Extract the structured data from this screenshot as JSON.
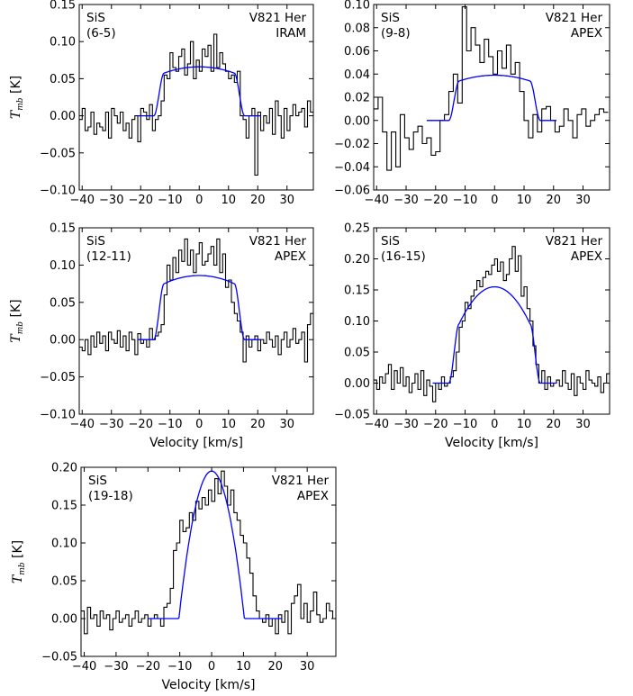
{
  "chart_data": [
    {
      "type": "line",
      "molecule": "SiS",
      "transition": "(6-5)",
      "source": "V821 Her",
      "telescope": "IRAM",
      "xlabel": "",
      "ylabel": "T_mb [K]",
      "xlim": [
        -41,
        39
      ],
      "ylim": [
        -0.1,
        0.15
      ],
      "xticks": [
        -40,
        -30,
        -20,
        -10,
        0,
        10,
        20,
        30
      ],
      "xtick_labels": [
        "−40",
        "−30",
        "−20",
        "−10",
        "0",
        "10",
        "20",
        "30"
      ],
      "yticks": [
        -0.1,
        -0.05,
        0.0,
        0.05,
        0.1,
        0.15
      ],
      "ytick_labels": [
        "−0.10",
        "−0.05",
        "0.00",
        "0.05",
        "0.10",
        "0.15"
      ],
      "grid": false,
      "series": [
        {
          "color": "#000000",
          "style": "steps",
          "x_start": -41,
          "x_step": 1,
          "values": [
            -0.005,
            0.01,
            -0.02,
            -0.015,
            0.005,
            -0.025,
            -0.01,
            -0.015,
            -0.02,
            0.005,
            -0.03,
            0.01,
            0.0,
            -0.01,
            0.005,
            -0.02,
            -0.01,
            -0.03,
            -0.005,
            0.0,
            -0.035,
            0.01,
            0.005,
            -0.005,
            0.015,
            -0.02,
            -0.005,
            0.0,
            0.02,
            0.055,
            0.05,
            0.085,
            0.065,
            0.06,
            0.08,
            0.09,
            0.055,
            0.07,
            0.1,
            0.05,
            0.075,
            0.06,
            0.09,
            0.08,
            0.095,
            0.06,
            0.11,
            0.065,
            0.085,
            0.07,
            0.06,
            0.05,
            0.055,
            0.045,
            0.06,
            0.0,
            -0.005,
            -0.03,
            0.0,
            0.01,
            -0.08,
            0.005,
            -0.02,
            0.0,
            -0.01,
            0.01,
            -0.025,
            0.02,
            0.0,
            -0.03,
            0.01,
            -0.02,
            0.0,
            0.015,
            0.0,
            0.005,
            0.01,
            -0.015,
            0.02,
            0.005
          ]
        },
        {
          "color": "#0000ff",
          "style": "model",
          "x_from": -21,
          "x_to": 21,
          "vexp": 13,
          "vinf": 12,
          "peak": 0.066,
          "curvature": 0.15,
          "baseline": 0.0
        }
      ]
    },
    {
      "type": "line",
      "molecule": "SiS",
      "transition": "(9-8)",
      "source": "V821 Her",
      "telescope": "APEX",
      "xlabel": "",
      "ylabel": "",
      "xlim": [
        -41,
        39
      ],
      "ylim": [
        -0.06,
        0.1
      ],
      "xticks": [
        -40,
        -30,
        -20,
        -10,
        0,
        10,
        20,
        30
      ],
      "xtick_labels": [
        "−40",
        "−30",
        "−20",
        "−10",
        "0",
        "10",
        "20",
        "30"
      ],
      "yticks": [
        -0.06,
        -0.04,
        -0.02,
        0.0,
        0.02,
        0.04,
        0.06,
        0.08,
        0.1
      ],
      "ytick_labels": [
        "−0.06",
        "−0.04",
        "−0.02",
        "0.00",
        "0.02",
        "0.04",
        "0.06",
        "0.08",
        "0.10"
      ],
      "grid": false,
      "series": [
        {
          "color": "#000000",
          "style": "steps",
          "x_start": -41,
          "x_step": 1.5,
          "values": [
            0.01,
            0.02,
            -0.01,
            -0.043,
            -0.01,
            -0.04,
            0.005,
            -0.015,
            -0.025,
            -0.01,
            -0.005,
            -0.02,
            -0.015,
            -0.03,
            -0.027,
            0.0,
            0.005,
            0.025,
            0.04,
            0.015,
            0.098,
            0.06,
            0.08,
            0.065,
            0.05,
            0.07,
            0.055,
            0.04,
            0.06,
            0.045,
            0.065,
            0.04,
            0.05,
            0.025,
            0.0,
            -0.015,
            0.005,
            -0.01,
            0.01,
            0.012,
            0.0,
            -0.01,
            -0.005,
            0.01,
            0.0,
            -0.015,
            0.005,
            0.01,
            -0.005,
            0.0,
            0.005,
            0.01,
            0.007
          ]
        },
        {
          "color": "#0000ff",
          "style": "model",
          "x_from": -23,
          "x_to": 21,
          "vexp": 13,
          "vinf": 12,
          "peak": 0.039,
          "curvature": 0.15,
          "baseline": 0.0
        }
      ]
    },
    {
      "type": "line",
      "molecule": "SiS",
      "transition": "(12-11)",
      "source": "V821 Her",
      "telescope": "APEX",
      "xlabel": "Velocity [km/s]",
      "ylabel": "T_mb [K]",
      "xlim": [
        -41,
        39
      ],
      "ylim": [
        -0.1,
        0.15
      ],
      "xticks": [
        -40,
        -30,
        -20,
        -10,
        0,
        10,
        20,
        30
      ],
      "xtick_labels": [
        "−40",
        "−30",
        "−20",
        "−10",
        "0",
        "10",
        "20",
        "30"
      ],
      "yticks": [
        -0.1,
        -0.05,
        0.0,
        0.05,
        0.1,
        0.15
      ],
      "ytick_labels": [
        "−0.10",
        "−0.05",
        "0.00",
        "0.05",
        "0.10",
        "0.15"
      ],
      "grid": false,
      "series": [
        {
          "color": "#000000",
          "style": "steps",
          "x_start": -41,
          "x_step": 1,
          "values": [
            -0.01,
            -0.015,
            0.0,
            -0.02,
            0.005,
            -0.01,
            0.01,
            -0.005,
            0.005,
            -0.015,
            0.01,
            0.0,
            -0.005,
            0.012,
            -0.01,
            0.005,
            -0.015,
            0.01,
            0.0,
            -0.02,
            0.008,
            -0.005,
            0.0,
            -0.01,
            0.015,
            0.0,
            0.005,
            0.01,
            0.02,
            0.06,
            0.1,
            0.08,
            0.11,
            0.09,
            0.12,
            0.105,
            0.135,
            0.1,
            0.12,
            0.09,
            0.115,
            0.13,
            0.1,
            0.105,
            0.115,
            0.125,
            0.1,
            0.135,
            0.09,
            0.115,
            0.07,
            0.08,
            0.05,
            0.035,
            0.025,
            0.01,
            -0.03,
            0.005,
            -0.01,
            0.0,
            0.005,
            -0.015,
            0.0,
            -0.005,
            0.01,
            0.0,
            -0.01,
            0.005,
            -0.02,
            0.0,
            0.01,
            -0.01,
            0.0,
            0.015,
            -0.005,
            0.0,
            0.01,
            -0.03,
            0.02,
            0.035
          ]
        },
        {
          "color": "#0000ff",
          "style": "model",
          "x_from": -21,
          "x_to": 21,
          "vexp": 13,
          "vinf": 12,
          "peak": 0.086,
          "curvature": 0.15,
          "baseline": 0.0
        }
      ]
    },
    {
      "type": "line",
      "molecule": "SiS",
      "transition": "(16-15)",
      "source": "V821 Her",
      "telescope": "APEX",
      "xlabel": "Velocity [km/s]",
      "ylabel": "",
      "xlim": [
        -41,
        39
      ],
      "ylim": [
        -0.05,
        0.25
      ],
      "xticks": [
        -40,
        -30,
        -20,
        -10,
        0,
        10,
        20,
        30
      ],
      "xtick_labels": [
        "−40",
        "−30",
        "−20",
        "−10",
        "0",
        "10",
        "20",
        "30"
      ],
      "yticks": [
        -0.05,
        0.0,
        0.05,
        0.1,
        0.15,
        0.2,
        0.25
      ],
      "ytick_labels": [
        "−0.05",
        "0.00",
        "0.05",
        "0.10",
        "0.15",
        "0.20",
        "0.25"
      ],
      "grid": false,
      "series": [
        {
          "color": "#000000",
          "style": "steps",
          "x_start": -41,
          "x_step": 1,
          "values": [
            0.005,
            -0.01,
            0.01,
            0.0,
            0.015,
            0.03,
            -0.01,
            0.02,
            0.0,
            0.025,
            -0.005,
            0.01,
            -0.015,
            0.0,
            0.015,
            -0.01,
            0.02,
            -0.02,
            0.005,
            -0.005,
            -0.03,
            0.0,
            -0.01,
            0.01,
            -0.005,
            0.0,
            0.01,
            0.02,
            0.05,
            0.09,
            0.1,
            0.13,
            0.12,
            0.14,
            0.15,
            0.165,
            0.155,
            0.17,
            0.18,
            0.175,
            0.19,
            0.2,
            0.18,
            0.195,
            0.165,
            0.175,
            0.2,
            0.22,
            0.18,
            0.205,
            0.14,
            0.155,
            0.12,
            0.1,
            0.06,
            0.03,
            0.0,
            0.02,
            -0.01,
            0.01,
            -0.005,
            0.0,
            0.005,
            -0.005,
            0.02,
            0.0,
            -0.01,
            0.015,
            -0.02,
            0.01,
            0.0,
            -0.01,
            0.02,
            0.005,
            0.0,
            -0.005,
            0.01,
            -0.015,
            0.0,
            0.015
          ]
        },
        {
          "color": "#0000ff",
          "style": "model",
          "x_from": -21,
          "x_to": 21,
          "vexp": 13,
          "vinf": 12,
          "peak": 0.155,
          "curvature": 0.45,
          "baseline": 0.0
        }
      ]
    },
    {
      "type": "line",
      "molecule": "SiS",
      "transition": "(19-18)",
      "source": "V821 Her",
      "telescope": "APEX",
      "xlabel": "Velocity [km/s]",
      "ylabel": "T_mb [K]",
      "xlim": [
        -41,
        39
      ],
      "ylim": [
        -0.05,
        0.2
      ],
      "xticks": [
        -40,
        -30,
        -20,
        -10,
        0,
        10,
        20,
        30
      ],
      "xtick_labels": [
        "−40",
        "−30",
        "−20",
        "−10",
        "0",
        "10",
        "20",
        "30"
      ],
      "yticks": [
        -0.05,
        0.0,
        0.05,
        0.1,
        0.15,
        0.2
      ],
      "ytick_labels": [
        "−0.05",
        "0.00",
        "0.05",
        "0.10",
        "0.15",
        "0.20"
      ],
      "grid": false,
      "series": [
        {
          "color": "#000000",
          "style": "steps",
          "x_start": -41,
          "x_step": 1,
          "values": [
            0.01,
            -0.02,
            0.015,
            0.0,
            0.005,
            -0.01,
            0.01,
            0.0,
            0.005,
            -0.015,
            0.0,
            0.01,
            -0.005,
            0.0,
            0.005,
            -0.01,
            0.0,
            0.01,
            -0.005,
            0.0,
            0.005,
            -0.01,
            0.0,
            0.005,
            0.0,
            -0.01,
            0.015,
            0.02,
            0.04,
            0.09,
            0.1,
            0.13,
            0.115,
            0.12,
            0.14,
            0.13,
            0.155,
            0.145,
            0.16,
            0.15,
            0.17,
            0.155,
            0.185,
            0.165,
            0.195,
            0.175,
            0.15,
            0.17,
            0.14,
            0.13,
            0.11,
            0.1,
            0.08,
            0.06,
            0.03,
            0.01,
            0.0,
            -0.005,
            0.005,
            -0.01,
            0.0,
            -0.02,
            0.005,
            -0.005,
            0.01,
            -0.02,
            0.02,
            0.03,
            0.045,
            0.0,
            0.02,
            -0.005,
            0.01,
            0.035,
            0.005,
            -0.005,
            0.0,
            0.02,
            0.01,
            0.0
          ]
        },
        {
          "color": "#0000ff",
          "style": "model",
          "x_from": -20,
          "x_to": 22,
          "vexp": 13,
          "vinf": 12,
          "peak": 0.195,
          "curvature": 1.6,
          "baseline": 0.0
        }
      ]
    }
  ]
}
